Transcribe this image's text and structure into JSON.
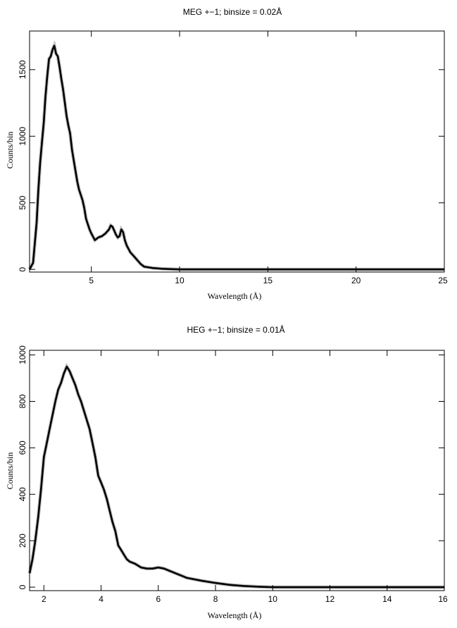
{
  "chart_data": [
    {
      "type": "line",
      "title": "MEG +−1; binsize = 0.02Å",
      "xlabel": "Wavelength (Å)",
      "ylabel": "Counts/bin",
      "xlim": [
        1.5,
        25
      ],
      "ylim": [
        -20,
        1790
      ],
      "xticks": [
        5,
        10,
        15,
        20,
        25
      ],
      "yticks": [
        0,
        500,
        1000,
        1500
      ],
      "xtick_labels": [
        "5",
        "10",
        "15",
        "20",
        "25"
      ],
      "ytick_labels": [
        "0",
        "500",
        "1000",
        "1500"
      ],
      "series": [
        {
          "x": [
            1.5,
            1.7,
            1.9,
            2.0,
            2.1,
            2.2,
            2.3,
            2.4,
            2.5,
            2.6,
            2.7,
            2.8,
            2.9,
            3.0,
            3.1,
            3.2,
            3.3,
            3.4,
            3.5,
            3.6,
            3.7,
            3.8,
            3.9,
            4.0,
            4.1,
            4.2,
            4.3,
            4.4,
            4.5,
            4.6,
            4.7,
            4.8,
            4.9,
            5.0,
            5.1,
            5.2,
            5.4,
            5.6,
            5.8,
            6.0,
            6.1,
            6.2,
            6.3,
            6.4,
            6.5,
            6.6,
            6.7,
            6.8,
            6.9,
            7.0,
            7.2,
            7.4,
            7.6,
            7.8,
            8.0,
            8.5,
            9.0,
            9.5,
            10.0,
            12.0,
            15.0,
            20.0,
            25.0
          ],
          "y": [
            0,
            50,
            350,
            600,
            800,
            950,
            1100,
            1300,
            1450,
            1580,
            1600,
            1650,
            1680,
            1620,
            1600,
            1520,
            1430,
            1350,
            1250,
            1150,
            1080,
            1020,
            900,
            820,
            740,
            660,
            600,
            560,
            520,
            460,
            380,
            340,
            300,
            270,
            245,
            220,
            240,
            250,
            270,
            300,
            330,
            320,
            290,
            260,
            240,
            250,
            300,
            280,
            220,
            180,
            130,
            100,
            70,
            40,
            20,
            10,
            5,
            2,
            0,
            0,
            0,
            0,
            0
          ]
        }
      ]
    },
    {
      "type": "line",
      "title": "HEG +−1; binsize = 0.01Å",
      "xlabel": "Wavelength (Å)",
      "ylabel": "Counts/bin",
      "xlim": [
        1.5,
        16
      ],
      "ylim": [
        -15,
        1020
      ],
      "xticks": [
        2,
        4,
        6,
        8,
        10,
        12,
        14,
        16
      ],
      "yticks": [
        0,
        200,
        400,
        600,
        800,
        1000
      ],
      "xtick_labels": [
        "2",
        "4",
        "6",
        "8",
        "10",
        "12",
        "14",
        "16"
      ],
      "ytick_labels": [
        "0",
        "200",
        "400",
        "600",
        "800",
        "1000"
      ],
      "series": [
        {
          "x": [
            1.5,
            1.6,
            1.7,
            1.8,
            1.9,
            2.0,
            2.1,
            2.2,
            2.3,
            2.4,
            2.5,
            2.6,
            2.7,
            2.8,
            2.9,
            3.0,
            3.1,
            3.2,
            3.3,
            3.4,
            3.5,
            3.6,
            3.7,
            3.8,
            3.9,
            4.0,
            4.1,
            4.2,
            4.3,
            4.4,
            4.5,
            4.6,
            4.7,
            4.8,
            4.9,
            5.0,
            5.2,
            5.4,
            5.6,
            5.8,
            6.0,
            6.2,
            6.4,
            6.6,
            6.8,
            7.0,
            7.5,
            8.0,
            8.5,
            9.0,
            9.5,
            10.0,
            12.0,
            14.0,
            16.0
          ],
          "y": [
            60,
            120,
            200,
            300,
            420,
            560,
            620,
            680,
            740,
            800,
            850,
            880,
            920,
            950,
            930,
            900,
            870,
            830,
            800,
            760,
            720,
            680,
            620,
            560,
            480,
            450,
            420,
            380,
            330,
            280,
            240,
            180,
            160,
            140,
            120,
            110,
            100,
            85,
            80,
            80,
            85,
            80,
            70,
            60,
            50,
            40,
            28,
            18,
            10,
            5,
            2,
            0,
            0,
            0,
            0
          ]
        }
      ]
    }
  ]
}
